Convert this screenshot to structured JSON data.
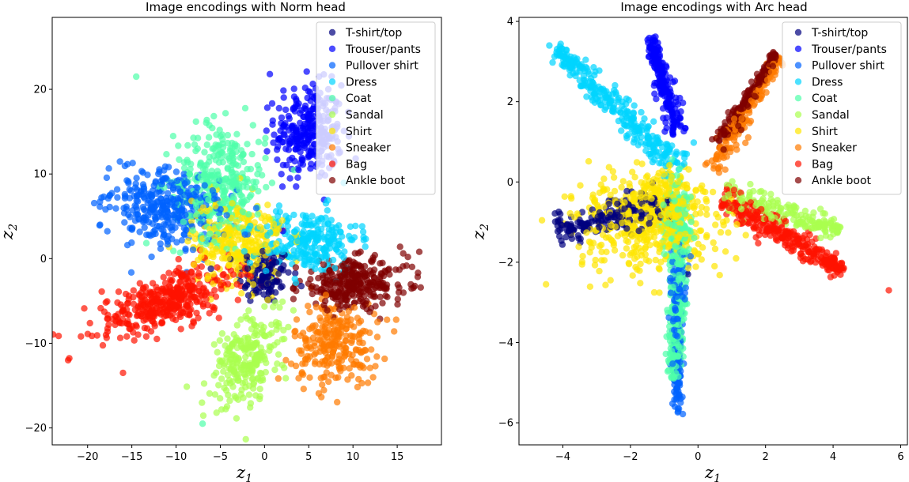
{
  "figure": {
    "legend_entries": [
      {
        "label": "T-shirt/top",
        "color": "#00007f"
      },
      {
        "label": "Trouser/pants",
        "color": "#0000ff"
      },
      {
        "label": "Pullover shirt",
        "color": "#0063ff"
      },
      {
        "label": "Dress",
        "color": "#00d4ff"
      },
      {
        "label": "Coat",
        "color": "#4effa9"
      },
      {
        "label": "Sandal",
        "color": "#a9ff4e"
      },
      {
        "label": "Shirt",
        "color": "#ffe600"
      },
      {
        "label": "Sneaker",
        "color": "#ff7a00"
      },
      {
        "label": "Bag",
        "color": "#ff1300"
      },
      {
        "label": "Ankle boot",
        "color": "#7f0000"
      }
    ],
    "marker_alpha": 0.7
  },
  "chart_data": [
    {
      "type": "scatter",
      "title": "Image encodings with Norm head",
      "xlabel": "z",
      "xlabel_sub": "1",
      "ylabel": "z",
      "ylabel_sub": "2",
      "xlim": [
        -24,
        20
      ],
      "ylim": [
        -22,
        28.5
      ],
      "xticks": [
        -20,
        -15,
        -10,
        -5,
        0,
        5,
        10,
        15
      ],
      "yticks": [
        -20,
        -10,
        0,
        10,
        20
      ],
      "xtick_labels": [
        "−20",
        "−15",
        "−10",
        "−5",
        "0",
        "5",
        "10",
        "15"
      ],
      "ytick_labels": [
        "−20",
        "−10",
        "0",
        "10",
        "20"
      ],
      "legend_position": "upper right",
      "clusters": [
        {
          "class": "T-shirt/top",
          "center": [
            0,
            -2
          ],
          "spread": [
            1.5,
            1.7
          ],
          "angle": 0,
          "n": 120
        },
        {
          "class": "Trouser/pants",
          "center": [
            5,
            15
          ],
          "spread": [
            1.9,
            2.8
          ],
          "angle": 0,
          "n": 300
        },
        {
          "class": "Pullover shirt",
          "center": [
            -11,
            6
          ],
          "spread": [
            3.2,
            2.2
          ],
          "angle": -0.3,
          "n": 350
        },
        {
          "class": "Dress",
          "center": [
            5,
            2
          ],
          "spread": [
            2.8,
            1.9
          ],
          "angle": 0.1,
          "n": 250
        },
        {
          "class": "Coat",
          "center": [
            -5,
            9
          ],
          "spread": [
            2.6,
            3.4
          ],
          "angle": 0,
          "n": 350
        },
        {
          "class": "Sandal",
          "center": [
            -2,
            -12
          ],
          "spread": [
            1.7,
            3.0
          ],
          "angle": -0.4,
          "n": 250
        },
        {
          "class": "Shirt",
          "center": [
            -3,
            2
          ],
          "spread": [
            2.6,
            2.6
          ],
          "angle": 0,
          "n": 300
        },
        {
          "class": "Sneaker",
          "center": [
            8,
            -10
          ],
          "spread": [
            2.4,
            2.4
          ],
          "angle": 0,
          "n": 250
        },
        {
          "class": "Bag",
          "center": [
            -11,
            -5
          ],
          "spread": [
            4.2,
            1.5
          ],
          "angle": 0.35,
          "n": 400
        },
        {
          "class": "Ankle boot",
          "center": [
            10,
            -3
          ],
          "spread": [
            3.1,
            1.4
          ],
          "angle": 0.08,
          "n": 300
        }
      ],
      "outliers": [
        {
          "class": "Coat",
          "x": -14.5,
          "y": 21.5
        },
        {
          "class": "Trouser/pants",
          "x": 0.6,
          "y": 21.8
        },
        {
          "class": "Bag",
          "x": -22.2,
          "y": -12
        },
        {
          "class": "Coat",
          "x": -7,
          "y": -19.5
        },
        {
          "class": "Ankle boot",
          "x": 17.5,
          "y": 0.8
        },
        {
          "class": "Bag",
          "x": -16,
          "y": -13.5
        }
      ]
    },
    {
      "type": "scatter",
      "title": "Image encodings with Arc head",
      "xlabel": "z",
      "xlabel_sub": "1",
      "ylabel": "z",
      "ylabel_sub": "2",
      "xlim": [
        -5.3,
        6.2
      ],
      "ylim": [
        -6.55,
        4.1
      ],
      "xticks": [
        -4,
        -2,
        0,
        2,
        4,
        6
      ],
      "yticks": [
        -6,
        -4,
        -2,
        0,
        2,
        4
      ],
      "xtick_labels": [
        "−4",
        "−2",
        "0",
        "2",
        "4",
        "6"
      ],
      "ytick_labels": [
        "−6",
        "−4",
        "−2",
        "0",
        "2",
        "4"
      ],
      "legend_position": "upper right",
      "arms": [
        {
          "class": "T-shirt/top",
          "from": [
            -0.8,
            -0.6
          ],
          "to": [
            -4.2,
            -1.2
          ],
          "width": 0.25,
          "n": 200
        },
        {
          "class": "Trouser/pants",
          "from": [
            -0.6,
            1.2
          ],
          "to": [
            -1.4,
            3.6
          ],
          "width": 0.14,
          "n": 200
        },
        {
          "class": "Pullover shirt",
          "from": [
            -0.6,
            -1.5
          ],
          "to": [
            -0.6,
            -5.8
          ],
          "width": 0.1,
          "n": 180
        },
        {
          "class": "Dress",
          "from": [
            -0.5,
            0.3
          ],
          "to": [
            -4.2,
            3.3
          ],
          "width": 0.2,
          "n": 300
        },
        {
          "class": "Coat",
          "from": [
            -0.5,
            -1.0
          ],
          "to": [
            -0.7,
            -4.9
          ],
          "width": 0.14,
          "n": 300
        },
        {
          "class": "Sandal",
          "from": [
            0.8,
            -0.3
          ],
          "to": [
            4.2,
            -1.2
          ],
          "width": 0.17,
          "n": 180
        },
        {
          "class": "Sneaker",
          "from": [
            0.4,
            0.3
          ],
          "to": [
            2.4,
            3.1
          ],
          "width": 0.14,
          "n": 160
        },
        {
          "class": "Bag",
          "from": [
            0.7,
            -0.4
          ],
          "to": [
            4.3,
            -2.2
          ],
          "width": 0.17,
          "n": 300
        },
        {
          "class": "Ankle boot",
          "from": [
            0.6,
            0.9
          ],
          "to": [
            2.3,
            3.2
          ],
          "width": 0.1,
          "n": 200
        }
      ],
      "blobs": [
        {
          "class": "Shirt",
          "center": [
            -1.5,
            -1.0
          ],
          "spread": [
            1.0,
            0.6
          ],
          "angle": 0,
          "n": 450
        },
        {
          "class": "Shirt",
          "center": [
            -0.9,
            -0.5
          ],
          "spread": [
            0.4,
            0.45
          ],
          "angle": 0,
          "n": 150
        },
        {
          "class": "Coat",
          "center": [
            -0.7,
            -0.8
          ],
          "spread": [
            0.25,
            0.5
          ],
          "angle": 0,
          "n": 100
        }
      ],
      "outliers": [
        {
          "class": "Bag",
          "x": 5.65,
          "y": -2.7
        },
        {
          "class": "Shirt",
          "x": -4.5,
          "y": -2.55
        },
        {
          "class": "Dress",
          "x": -4.4,
          "y": 3.4
        },
        {
          "class": "Trouser/pants",
          "x": -1.3,
          "y": 2.4
        },
        {
          "class": "T-shirt/top",
          "x": -0.3,
          "y": -2.3
        }
      ]
    }
  ]
}
